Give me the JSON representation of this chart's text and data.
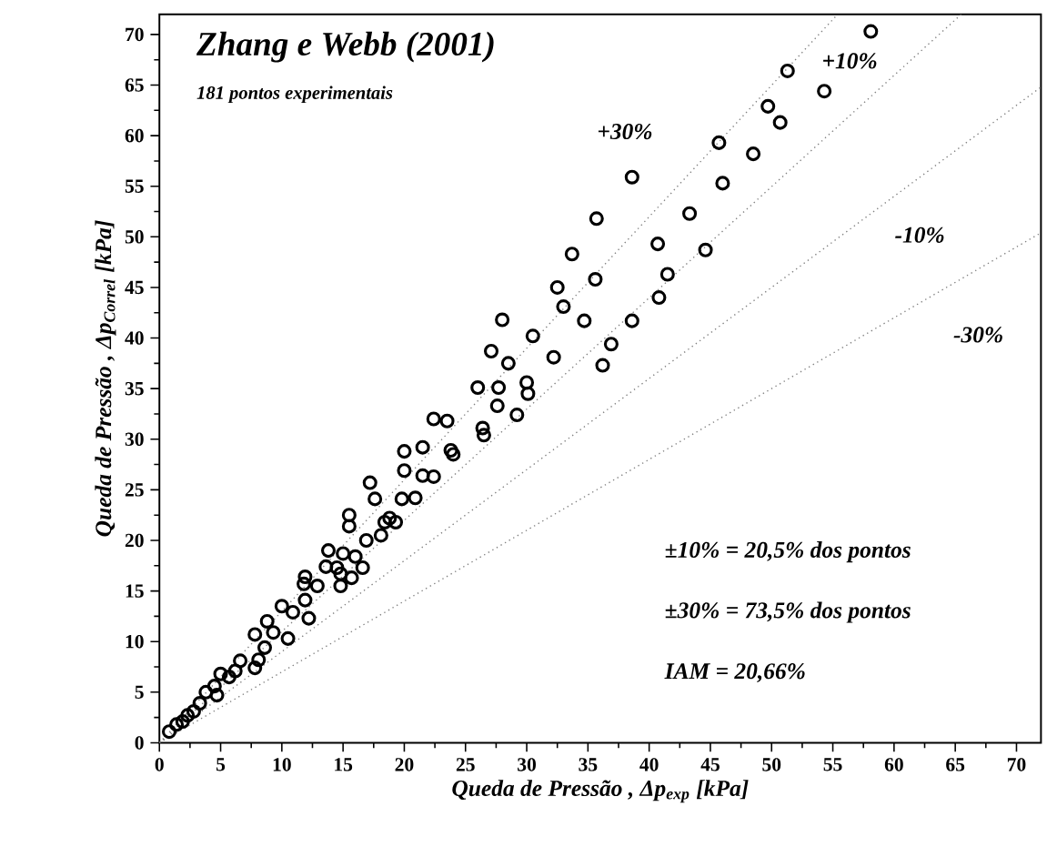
{
  "chart_data": {
    "type": "scatter",
    "title": "Zhang e Webb (2001)",
    "subtitle": "181 pontos experimentais",
    "xlabel": "Queda de Pressão , Δp$_{exp}$ [kPa]",
    "ylabel": "Queda de Pressão , Δp$_{Correl}$ [kPa]",
    "xlim": [
      0,
      72
    ],
    "ylim": [
      0,
      72
    ],
    "xticks": [
      0,
      5,
      10,
      15,
      20,
      25,
      30,
      35,
      40,
      45,
      50,
      55,
      60,
      65,
      70
    ],
    "yticks": [
      0,
      5,
      10,
      15,
      20,
      25,
      30,
      35,
      40,
      45,
      50,
      55,
      60,
      65,
      70
    ],
    "marker": "circle",
    "series": [
      {
        "color": "#000000",
        "x": [
          58.1,
          51.3,
          54.3,
          49.7,
          50.7,
          45.7,
          48.5,
          46.0,
          38.6,
          43.3,
          35.7,
          40.7,
          44.6,
          33.7,
          41.5,
          35.6,
          32.5,
          33.0,
          40.8,
          34.7,
          38.6,
          36.9,
          36.2,
          32.2,
          28.0,
          30.5,
          27.1,
          28.5,
          26.0,
          27.7,
          30.1,
          30.0,
          27.6,
          29.2,
          22.4,
          23.5,
          26.4,
          26.5,
          21.5,
          20.0,
          23.8,
          24.0,
          20.0,
          21.5,
          22.4,
          17.2,
          17.6,
          19.8,
          20.9,
          15.5,
          15.5,
          18.8,
          18.4,
          19.3,
          18.1,
          16.9,
          13.8,
          15.0,
          16.0,
          14.5,
          16.6,
          14.8,
          13.6,
          11.9,
          12.9,
          14.8,
          15.7,
          11.8,
          10.0,
          10.9,
          11.9,
          12.2,
          10.5,
          8.8,
          7.8,
          9.3,
          8.6,
          8.1,
          6.6,
          7.8,
          5.7,
          5.0,
          4.5,
          3.8,
          4.7,
          3.3,
          2.3,
          1.4,
          0.8,
          1.9,
          2.8,
          6.2
        ],
        "values": [
          70.3,
          66.4,
          64.4,
          62.9,
          61.3,
          59.3,
          58.2,
          55.3,
          55.9,
          52.3,
          51.8,
          49.3,
          48.7,
          48.3,
          46.3,
          45.8,
          45.0,
          43.1,
          44.0,
          41.7,
          41.7,
          39.4,
          37.3,
          38.1,
          41.8,
          40.2,
          38.7,
          37.5,
          35.1,
          35.1,
          34.5,
          35.6,
          33.3,
          32.4,
          32.0,
          31.8,
          31.1,
          30.4,
          29.2,
          28.8,
          28.9,
          28.5,
          26.9,
          26.4,
          26.3,
          25.7,
          24.1,
          24.1,
          24.2,
          22.5,
          21.4,
          22.2,
          21.8,
          21.8,
          20.5,
          20.0,
          19.0,
          18.7,
          18.4,
          17.3,
          17.3,
          16.7,
          17.4,
          16.4,
          15.5,
          15.5,
          16.3,
          15.7,
          13.5,
          12.9,
          14.1,
          12.3,
          10.3,
          12.0,
          10.7,
          10.9,
          9.4,
          8.2,
          8.1,
          7.4,
          6.5,
          6.8,
          5.6,
          5.0,
          4.7,
          3.9,
          2.7,
          1.8,
          1.1,
          2.1,
          3.1,
          7.1
        ]
      },
      {
        "type": "line",
        "color": "#808080",
        "line_style": "dotted",
        "marker": "none",
        "x": [
          0,
          55.4
        ],
        "values": [
          0,
          72
        ]
      },
      {
        "type": "line",
        "color": "#808080",
        "line_style": "dotted",
        "marker": "none",
        "x": [
          0,
          65.5
        ],
        "values": [
          0,
          72
        ]
      },
      {
        "type": "line",
        "color": "#808080",
        "line_style": "dotted",
        "marker": "none",
        "x": [
          0,
          72
        ],
        "values": [
          0,
          64.8
        ]
      },
      {
        "type": "line",
        "color": "#808080",
        "line_style": "dotted",
        "marker": "none",
        "x": [
          0,
          72
        ],
        "values": [
          0,
          50.4
        ]
      }
    ],
    "annotations": [
      "+30%",
      "+10%",
      "-10%",
      "-30%",
      "±10% = 20,5% dos pontos",
      "±30% = 73,5% dos pontos",
      "IAM = 20,66%"
    ]
  }
}
